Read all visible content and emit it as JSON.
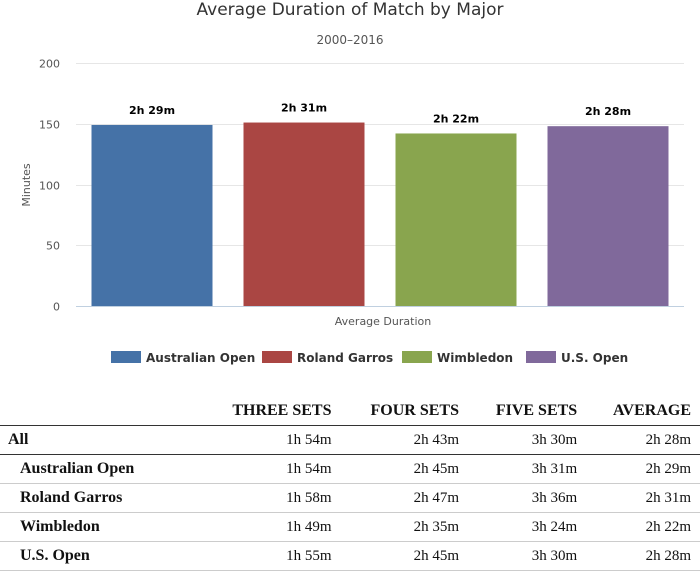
{
  "chart_data": {
    "type": "bar",
    "title": "Average Duration of Match by Major",
    "subtitle": "2000–2016",
    "xlabel": "Average Duration",
    "ylabel": "Minutes",
    "ylim": [
      0,
      200
    ],
    "yticks": [
      0,
      50,
      100,
      150,
      200
    ],
    "grid": true,
    "legend_position": "bottom",
    "series": [
      {
        "name": "Australian Open",
        "value": 149,
        "data_label": "2h 29m",
        "color": "#4572a7"
      },
      {
        "name": "Roland Garros",
        "value": 151,
        "data_label": "2h 31m",
        "color": "#aa4643"
      },
      {
        "name": "Wimbledon",
        "value": 142,
        "data_label": "2h 22m",
        "color": "#89a54e"
      },
      {
        "name": "U.S. Open",
        "value": 148,
        "data_label": "2h 28m",
        "color": "#80699b"
      }
    ]
  },
  "table": {
    "headers": [
      "",
      "THREE SETS",
      "FOUR SETS",
      "FIVE SETS",
      "AVERAGE"
    ],
    "all_row": [
      "All",
      "1h 54m",
      "2h 43m",
      "3h 30m",
      "2h 28m"
    ],
    "rows": [
      [
        "Australian Open",
        "1h 54m",
        "2h 45m",
        "3h 31m",
        "2h 29m"
      ],
      [
        "Roland Garros",
        "1h 58m",
        "2h 47m",
        "3h 36m",
        "2h 31m"
      ],
      [
        "Wimbledon",
        "1h 49m",
        "2h 35m",
        "3h 24m",
        "2h 22m"
      ],
      [
        "U.S. Open",
        "1h 55m",
        "2h 45m",
        "3h 30m",
        "2h 28m"
      ]
    ]
  }
}
